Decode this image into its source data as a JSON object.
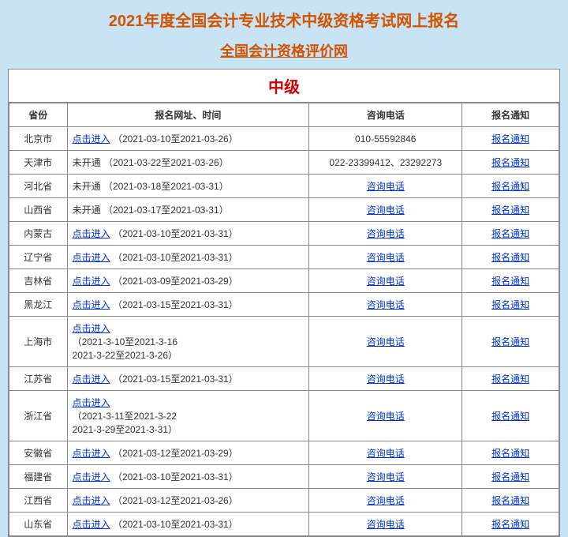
{
  "colors": {
    "page_bg": "#c8e4f4",
    "title_color": "#d35400",
    "level_color": "#d20000",
    "link_color": "#0033cc",
    "border_color": "#888888",
    "text_color": "#333333"
  },
  "title": "2021年度全国会计专业技术中级资格考试网上报名",
  "subtitle": "全国会计资格评价网",
  "level": "中级",
  "headers": {
    "province": "省份",
    "info": "报名网址、时间",
    "phone": "咨询电话",
    "notice": "报名通知"
  },
  "link_enter": "点击进入",
  "link_phone": "咨询电话",
  "link_notice": "报名通知",
  "not_open": "未开通",
  "rows": [
    {
      "province": "北京市",
      "can_enter": true,
      "dates": "（2021-03-10至2021-03-26）",
      "phone_text": "010-55592846",
      "phone_is_link": false
    },
    {
      "province": "天津市",
      "can_enter": false,
      "dates": "（2021-03-22至2021-03-26）",
      "phone_text": "022-23399412、23292273",
      "phone_is_link": false
    },
    {
      "province": "河北省",
      "can_enter": false,
      "dates": "（2021-03-18至2021-03-31）",
      "phone_text": "咨询电话",
      "phone_is_link": true
    },
    {
      "province": "山西省",
      "can_enter": false,
      "dates": "（2021-03-17至2021-03-31）",
      "phone_text": "咨询电话",
      "phone_is_link": true
    },
    {
      "province": "内蒙古",
      "can_enter": true,
      "dates": "（2021-03-10至2021-03-31）",
      "phone_text": "咨询电话",
      "phone_is_link": true
    },
    {
      "province": "辽宁省",
      "can_enter": true,
      "dates": "（2021-03-10至2021-03-31）",
      "phone_text": "咨询电话",
      "phone_is_link": true
    },
    {
      "province": "吉林省",
      "can_enter": true,
      "dates": "（2021-03-09至2021-03-29）",
      "phone_text": "咨询电话",
      "phone_is_link": true
    },
    {
      "province": "黑龙江",
      "can_enter": true,
      "dates": "（2021-03-15至2021-03-31）",
      "phone_text": "咨询电话",
      "phone_is_link": true
    },
    {
      "province": "上海市",
      "can_enter": true,
      "dates": "（2021-3-10至2021-3-16\n2021-3-22至2021-3-26）",
      "phone_text": "咨询电话",
      "phone_is_link": true,
      "multiline": true
    },
    {
      "province": "江苏省",
      "can_enter": true,
      "dates": "（2021-03-15至2021-03-31）",
      "phone_text": "咨询电话",
      "phone_is_link": true
    },
    {
      "province": "浙江省",
      "can_enter": true,
      "dates": "（2021-3-11至2021-3-22\n2021-3-29至2021-3-31）",
      "phone_text": "咨询电话",
      "phone_is_link": true,
      "multiline": true
    },
    {
      "province": "安徽省",
      "can_enter": true,
      "dates": "（2021-03-12至2021-03-29）",
      "phone_text": "咨询电话",
      "phone_is_link": true
    },
    {
      "province": "福建省",
      "can_enter": true,
      "dates": "（2021-03-10至2021-03-31）",
      "phone_text": "咨询电话",
      "phone_is_link": true
    },
    {
      "province": "江西省",
      "can_enter": true,
      "dates": "（2021-03-12至2021-03-26）",
      "phone_text": "咨询电话",
      "phone_is_link": true
    },
    {
      "province": "山东省",
      "can_enter": true,
      "dates": "（2021-03-10至2021-03-31）",
      "phone_text": "咨询电话",
      "phone_is_link": true
    }
  ]
}
